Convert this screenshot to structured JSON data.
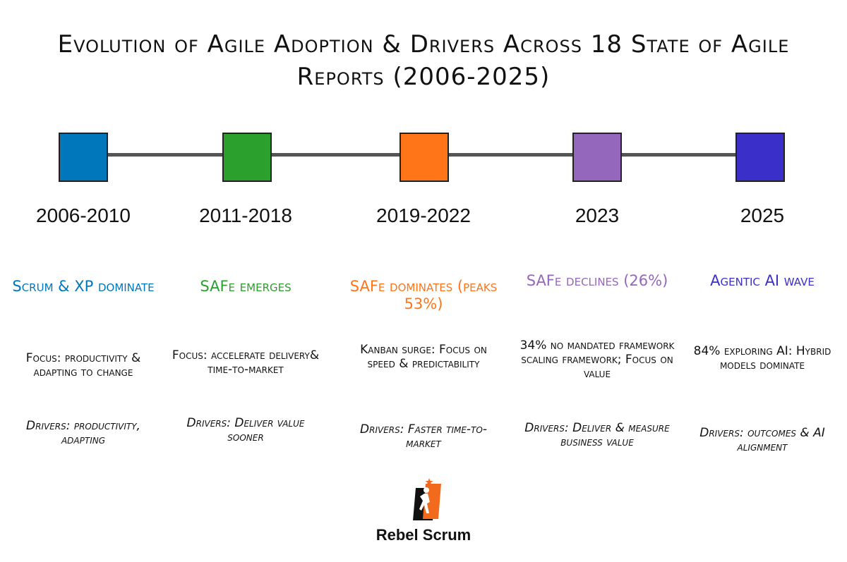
{
  "title": "Evolution of Agile Adoption & Drivers Across 18 State of Agile Reports (2006-2025)",
  "eras": [
    {
      "period": "2006-2010",
      "color": "#0077BB",
      "headline": "Scrum & XP dominate",
      "focus": "Focus: productivity & adapting to change",
      "drivers": "Drivers: productivity, adapting"
    },
    {
      "period": "2011-2018",
      "color": "#2CA02C",
      "headline": "SAFe emerges",
      "focus": "Focus: accelerate delivery& time-to-market",
      "drivers": "Drivers: Deliver value sooner"
    },
    {
      "period": "2019-2022",
      "color": "#FF7518",
      "headline": "SAFe dominates (peaks 53%)",
      "focus": "Kanban surge: Focus on speed & predictability",
      "drivers": "Drivers: Faster time-to-market"
    },
    {
      "period": "2023",
      "color": "#9467BD",
      "headline": "SAFe declines (26%)",
      "focus": "34% no mandated framework scaling framework; Focus on value",
      "drivers": "Drivers: Deliver & measure business value"
    },
    {
      "period": "2025",
      "color": "#3A2FC8",
      "headline": "Agentic AI wave",
      "focus": "84% exploring AI: Hybrid models dominate",
      "drivers": "Drivers: outcomes & AI alignment"
    }
  ],
  "logo": {
    "text": "Rebel Scrum"
  }
}
